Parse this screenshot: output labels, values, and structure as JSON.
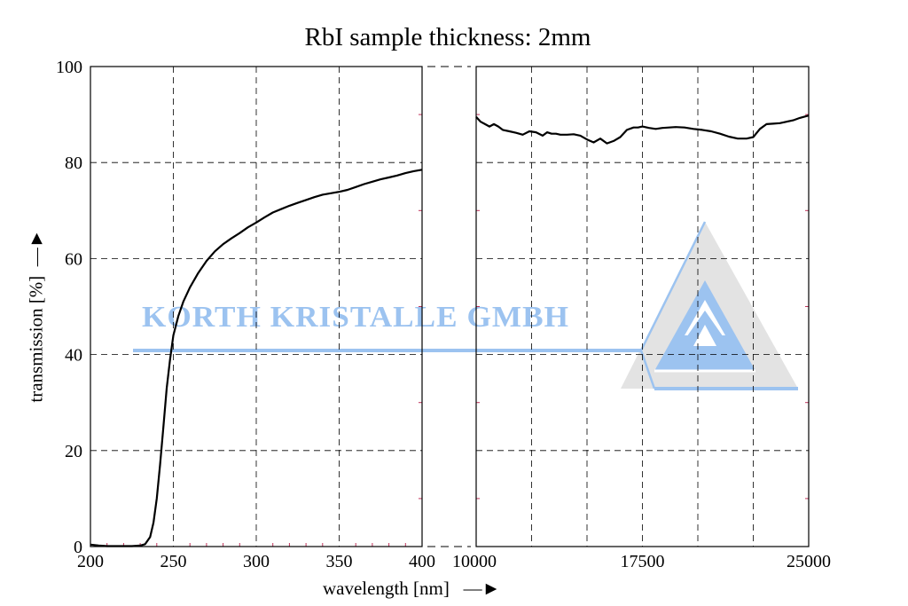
{
  "chart_data": {
    "type": "line",
    "title": "RbI sample thickness: 2mm",
    "xlabel": "wavelength [nm]",
    "ylabel": "transmission [%]",
    "ylim": [
      0,
      100
    ],
    "y_ticks": [
      "0",
      "20",
      "40",
      "60",
      "80",
      "100"
    ],
    "grid": true,
    "panels": [
      {
        "name": "uv-vis",
        "xlim": [
          200,
          400
        ],
        "x_ticks": [
          "200",
          "250",
          "300",
          "350",
          "400"
        ],
        "series": [
          {
            "x": [
              200,
              205,
              210,
              215,
              220,
              225,
              230,
              233,
              236,
              238,
              240,
              242,
              244,
              246,
              248,
              250,
              253,
              256,
              260,
              265,
              270,
              275,
              280,
              285,
              290,
              295,
              300,
              305,
              310,
              315,
              320,
              325,
              330,
              335,
              340,
              345,
              350,
              355,
              360,
              365,
              370,
              375,
              380,
              385,
              390,
              395,
              400
            ],
            "y": [
              0.4,
              0.2,
              0.1,
              0.1,
              0.1,
              0.1,
              0.2,
              0.5,
              2,
              5,
              10,
              17,
              25,
              33,
              39,
              44,
              48,
              51,
              54,
              57,
              59.5,
              61.5,
              63,
              64.2,
              65.3,
              66.5,
              67.5,
              68.6,
              69.6,
              70.3,
              71,
              71.6,
              72.2,
              72.8,
              73.3,
              73.6,
              73.9,
              74.3,
              74.9,
              75.5,
              76,
              76.5,
              76.9,
              77.3,
              77.8,
              78.2,
              78.5
            ]
          }
        ]
      },
      {
        "name": "ir",
        "xlim": [
          10000,
          25000
        ],
        "x_ticks": [
          "10000",
          "17500",
          "25000"
        ],
        "series": [
          {
            "x": [
              10000,
              10200,
              10400,
              10600,
              10800,
              11000,
              11200,
              11500,
              11800,
              12100,
              12400,
              12700,
              13000,
              13200,
              13400,
              13600,
              13800,
              14100,
              14400,
              14700,
              15000,
              15300,
              15600,
              15900,
              16200,
              16500,
              16800,
              17100,
              17300,
              17500,
              17800,
              18100,
              18400,
              18700,
              19000,
              19400,
              19800,
              20200,
              20600,
              21000,
              21400,
              21800,
              22200,
              22500,
              22800,
              23100,
              23400,
              23700,
              24000,
              24300,
              24600,
              25000
            ],
            "y": [
              89.5,
              88.5,
              88,
              87.5,
              88,
              87.5,
              86.8,
              86.5,
              86.2,
              85.8,
              86.5,
              86.3,
              85.6,
              86.3,
              86,
              86,
              85.8,
              85.8,
              85.9,
              85.6,
              84.8,
              84.2,
              85,
              84,
              84.5,
              85.3,
              86.8,
              87.3,
              87.3,
              87.5,
              87.2,
              87,
              87.2,
              87.3,
              87.4,
              87.3,
              87,
              86.8,
              86.5,
              86,
              85.4,
              85,
              85,
              85.3,
              87,
              88,
              88.1,
              88.2,
              88.5,
              88.8,
              89.3,
              89.8
            ]
          }
        ]
      }
    ],
    "watermark": {
      "text": "KORTH KRISTALLE GMBH",
      "text_color": "#9cc3f0",
      "logo_color": "#9cc3f0",
      "shadow_color": "#e3e3e3"
    },
    "colors": {
      "line": "#000000",
      "grid": "#000000",
      "minor_tick": "#c0325a"
    }
  }
}
